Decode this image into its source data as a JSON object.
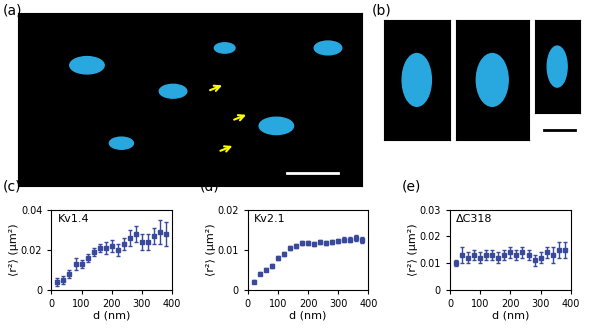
{
  "panel_labels": [
    "(a)",
    "(b)"
  ],
  "chart_data": [
    {
      "type": "scatter",
      "panel": "(c)",
      "annotation": "Kv1.4",
      "x_label": "d (nm)",
      "y_label": "⟨r²⟩ (μm²)",
      "x": [
        20,
        40,
        60,
        80,
        100,
        120,
        140,
        160,
        180,
        200,
        220,
        240,
        260,
        280,
        300,
        320,
        340,
        360,
        380
      ],
      "values": [
        0.004,
        0.005,
        0.008,
        0.013,
        0.013,
        0.016,
        0.019,
        0.021,
        0.021,
        0.022,
        0.02,
        0.023,
        0.026,
        0.028,
        0.024,
        0.024,
        0.027,
        0.029,
        0.028
      ],
      "errors": [
        0.002,
        0.002,
        0.002,
        0.003,
        0.002,
        0.002,
        0.002,
        0.002,
        0.003,
        0.003,
        0.003,
        0.003,
        0.004,
        0.004,
        0.004,
        0.004,
        0.004,
        0.006,
        0.006
      ],
      "color": "#3a4a9a",
      "marker": "s",
      "xlim": [
        0,
        400
      ],
      "xticks": [
        0,
        100,
        200,
        300,
        400
      ],
      "ylim": [
        0,
        0.04
      ],
      "yticks": [
        0,
        0.02,
        0.04
      ]
    },
    {
      "type": "scatter",
      "panel": "(d)",
      "annotation": "Kv2.1",
      "x_label": "d (nm)",
      "y_label": "⟨r²⟩ (μm²)",
      "x": [
        20,
        40,
        60,
        80,
        100,
        120,
        140,
        160,
        180,
        200,
        220,
        240,
        260,
        280,
        300,
        320,
        340,
        360,
        380
      ],
      "values": [
        0.002,
        0.004,
        0.005,
        0.006,
        0.008,
        0.009,
        0.0105,
        0.011,
        0.0118,
        0.0118,
        0.0115,
        0.012,
        0.0118,
        0.012,
        0.0122,
        0.0125,
        0.0125,
        0.013,
        0.0125
      ],
      "errors": [
        0.0004,
        0.0004,
        0.0004,
        0.0005,
        0.0005,
        0.0005,
        0.0005,
        0.0005,
        0.0005,
        0.0005,
        0.0005,
        0.0005,
        0.0005,
        0.0005,
        0.0005,
        0.0006,
        0.0006,
        0.0008,
        0.0008
      ],
      "color": "#3a4a9a",
      "marker": "s",
      "xlim": [
        0,
        400
      ],
      "xticks": [
        0,
        100,
        200,
        300,
        400
      ],
      "ylim": [
        0,
        0.02
      ],
      "yticks": [
        0,
        0.01,
        0.02
      ]
    },
    {
      "type": "scatter",
      "panel": "(e)",
      "annotation": "ΔC318",
      "x_label": "d (nm)",
      "y_label": "⟨r²⟩ (μm²)",
      "x": [
        20,
        40,
        60,
        80,
        100,
        120,
        140,
        160,
        180,
        200,
        220,
        240,
        260,
        280,
        300,
        320,
        340,
        360,
        380
      ],
      "values": [
        0.01,
        0.013,
        0.012,
        0.013,
        0.012,
        0.013,
        0.013,
        0.012,
        0.013,
        0.014,
        0.013,
        0.014,
        0.013,
        0.011,
        0.012,
        0.014,
        0.013,
        0.015,
        0.015
      ],
      "errors": [
        0.001,
        0.003,
        0.002,
        0.002,
        0.002,
        0.002,
        0.002,
        0.002,
        0.002,
        0.002,
        0.002,
        0.002,
        0.002,
        0.002,
        0.002,
        0.002,
        0.003,
        0.003,
        0.003
      ],
      "color": "#3a4a9a",
      "marker": "s",
      "xlim": [
        0,
        400
      ],
      "xticks": [
        0,
        100,
        200,
        300,
        400
      ],
      "ylim": [
        0,
        0.03
      ],
      "yticks": [
        0,
        0.01,
        0.02,
        0.03
      ]
    }
  ]
}
